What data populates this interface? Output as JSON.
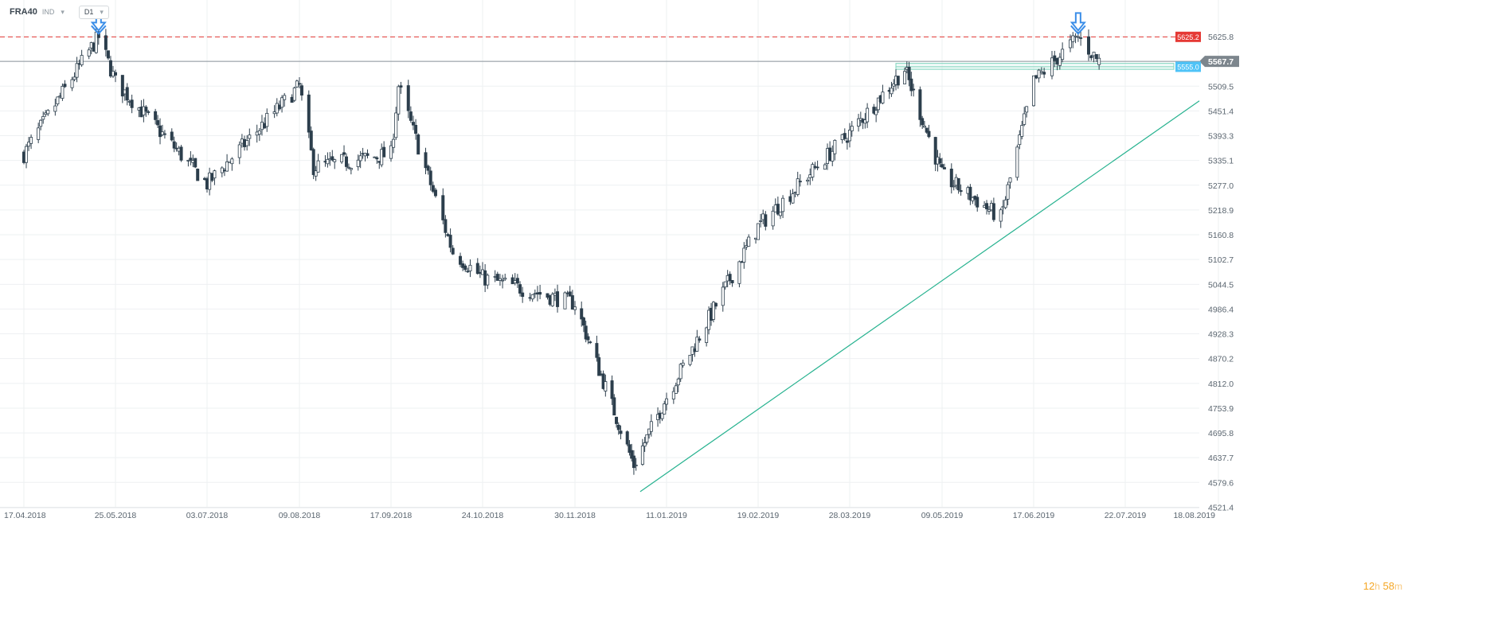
{
  "header": {
    "symbol": "FRA40",
    "type": "IND",
    "timeframe": "D1"
  },
  "timer": {
    "hours": "12",
    "h_unit": "h",
    "minutes": "58",
    "m_unit": "m"
  },
  "colors": {
    "up_candle": "#ffffff",
    "down_candle": "#2c3e4c",
    "resistance": "#e53935",
    "current_price": "#8a939a",
    "support_zone": "#4fc3f7",
    "trendline": "#26b28f",
    "arrow": "#3b8ee8"
  },
  "chart_data": {
    "type": "candlestick",
    "y_ticks": [
      "5625.8",
      "5567.7",
      "5509.5",
      "5451.4",
      "5393.3",
      "5335.1",
      "5277.0",
      "5218.9",
      "5160.8",
      "5102.7",
      "5044.5",
      "4986.4",
      "4928.3",
      "4870.2",
      "4812.0",
      "4753.9",
      "4695.8",
      "4637.7",
      "4579.6",
      "4521.4"
    ],
    "x_ticks": [
      "17.04.2018",
      "25.05.2018",
      "03.07.2018",
      "09.08.2018",
      "17.09.2018",
      "24.10.2018",
      "30.11.2018",
      "11.01.2019",
      "19.02.2019",
      "28.03.2019",
      "09.05.2019",
      "17.06.2019",
      "22.07.2019",
      "18.08.2019"
    ],
    "ylim": [
      4521.4,
      5654.9
    ],
    "price_labels": {
      "resistance": "5625.2",
      "current": "5567.7",
      "support": "5555.0"
    },
    "key_closes": [
      {
        "date": "17.04.2018",
        "close": 5350
      },
      {
        "date": "15.05.2018",
        "close": 5600
      },
      {
        "date": "18.05.2018",
        "close": 5625
      },
      {
        "date": "25.05.2018",
        "close": 5520
      },
      {
        "date": "03.07.2018",
        "close": 5280
      },
      {
        "date": "09.08.2018",
        "close": 5510
      },
      {
        "date": "15.08.2018",
        "close": 5320
      },
      {
        "date": "17.09.2018",
        "close": 5350
      },
      {
        "date": "20.09.2018",
        "close": 5510
      },
      {
        "date": "12.10.2018",
        "close": 5120
      },
      {
        "date": "24.10.2018",
        "close": 5060
      },
      {
        "date": "30.11.2018",
        "close": 5000
      },
      {
        "date": "27.12.2018",
        "close": 4620
      },
      {
        "date": "11.01.2019",
        "close": 4780
      },
      {
        "date": "19.02.2019",
        "close": 5180
      },
      {
        "date": "28.03.2019",
        "close": 5400
      },
      {
        "date": "22.04.2019",
        "close": 5550
      },
      {
        "date": "09.05.2019",
        "close": 5300
      },
      {
        "date": "03.06.2019",
        "close": 5200
      },
      {
        "date": "17.06.2019",
        "close": 5520
      },
      {
        "date": "04.07.2019",
        "close": 5625
      },
      {
        "date": "12.07.2019",
        "close": 5567
      }
    ]
  }
}
